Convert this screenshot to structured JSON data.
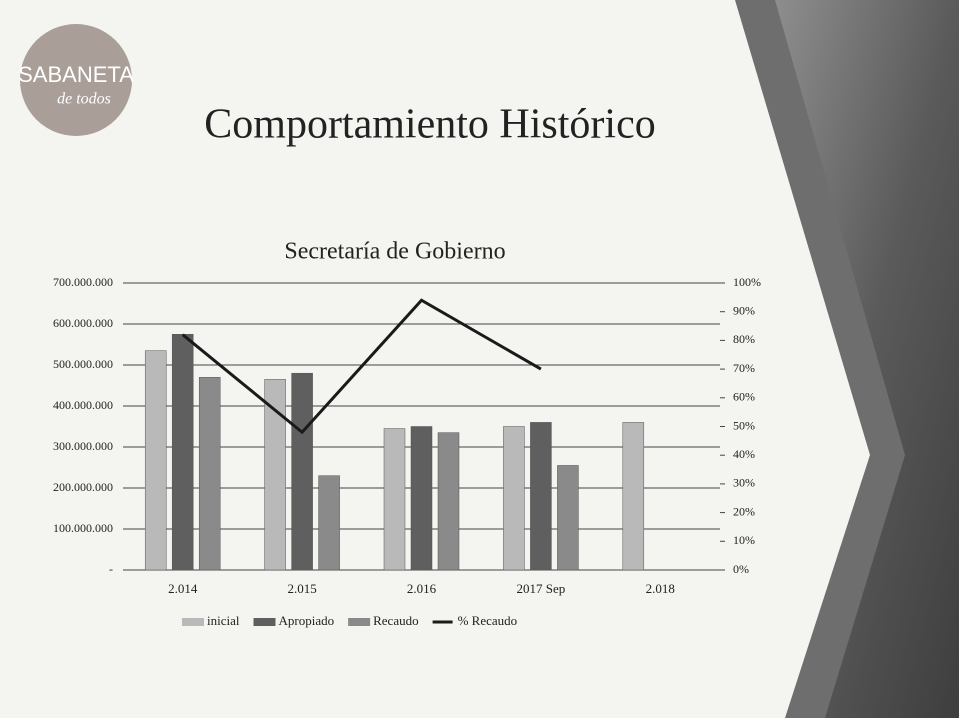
{
  "logo": {
    "text": "SABANETA",
    "subtext": "de todos"
  },
  "header": {
    "title": "Comportamiento Histórico"
  },
  "chart_data": {
    "type": "bar",
    "title": "Secretaría de Gobierno",
    "categories": [
      "2.014",
      "2.015",
      "2.016",
      "2017 Sep",
      "2.018"
    ],
    "series": [
      {
        "name": "inicial",
        "color": "#b9b9b9",
        "values": [
          535000000,
          465000000,
          345000000,
          350000000,
          360000000
        ]
      },
      {
        "name": "Apropiado",
        "color": "#5f5f5f",
        "values": [
          575000000,
          480000000,
          350000000,
          360000000,
          null
        ]
      },
      {
        "name": "Recaudo",
        "color": "#8a8a8a",
        "values": [
          470000000,
          230000000,
          335000000,
          255000000,
          null
        ]
      },
      {
        "name": "% Recaudo",
        "color": "#1a1a1a",
        "type": "line",
        "axis": "y2",
        "values": [
          82,
          48,
          94,
          70,
          null
        ]
      }
    ],
    "ylim": [
      0,
      700000000
    ],
    "yticks": [
      {
        "value": 0,
        "label": "-"
      },
      {
        "value": 100000000,
        "label": "100.000.000"
      },
      {
        "value": 200000000,
        "label": "200.000.000"
      },
      {
        "value": 300000000,
        "label": "300.000.000"
      },
      {
        "value": 400000000,
        "label": "400.000.000"
      },
      {
        "value": 500000000,
        "label": "500.000.000"
      },
      {
        "value": 600000000,
        "label": "600.000.000"
      },
      {
        "value": 700000000,
        "label": "700.000.000"
      }
    ],
    "y2lim": [
      0,
      100
    ],
    "y2ticks": [
      {
        "value": 0,
        "label": "0%"
      },
      {
        "value": 10,
        "label": "10%"
      },
      {
        "value": 20,
        "label": "20%"
      },
      {
        "value": 30,
        "label": "30%"
      },
      {
        "value": 40,
        "label": "40%"
      },
      {
        "value": 50,
        "label": "50%"
      },
      {
        "value": 60,
        "label": "60%"
      },
      {
        "value": 70,
        "label": "70%"
      },
      {
        "value": 80,
        "label": "80%"
      },
      {
        "value": 90,
        "label": "90%"
      },
      {
        "value": 100,
        "label": "100%"
      }
    ],
    "grid": true,
    "legend": "bottom"
  }
}
